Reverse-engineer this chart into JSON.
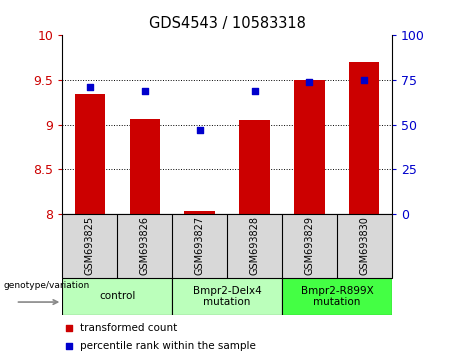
{
  "title": "GDS4543 / 10583318",
  "samples": [
    "GSM693825",
    "GSM693826",
    "GSM693827",
    "GSM693828",
    "GSM693829",
    "GSM693830"
  ],
  "red_values": [
    9.35,
    9.07,
    8.03,
    9.05,
    9.5,
    9.7
  ],
  "blue_values": [
    71,
    69,
    47,
    69,
    74,
    75
  ],
  "ylim_left": [
    8.0,
    10.0
  ],
  "ylim_right": [
    0,
    100
  ],
  "yticks_left": [
    8.0,
    8.5,
    9.0,
    9.5,
    10.0
  ],
  "yticks_right": [
    0,
    25,
    50,
    75,
    100
  ],
  "red_color": "#cc0000",
  "blue_color": "#0000cc",
  "bar_width": 0.55,
  "group_info": [
    {
      "cols": [
        0,
        1
      ],
      "label": "control",
      "color": "#bbffbb"
    },
    {
      "cols": [
        2,
        3
      ],
      "label": "Bmpr2-Delx4\nmutation",
      "color": "#bbffbb"
    },
    {
      "cols": [
        4,
        5
      ],
      "label": "Bmpr2-R899X\nmutation",
      "color": "#44ff44"
    }
  ],
  "legend_red_label": "transformed count",
  "legend_blue_label": "percentile rank within the sample",
  "genotype_label": "genotype/variation",
  "sample_box_color": "#d8d8d8"
}
